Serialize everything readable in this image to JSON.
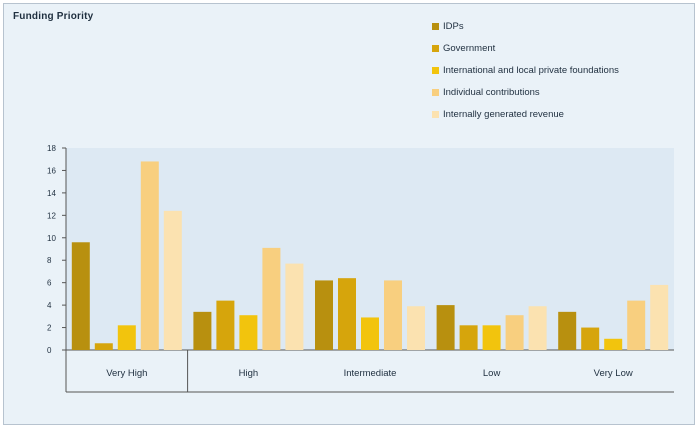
{
  "chart_data": {
    "type": "bar",
    "title": "Funding Priority",
    "categories": [
      "Very High",
      "High",
      "Intermediate",
      "Low",
      "Very Low"
    ],
    "yticks": [
      "0",
      "2",
      "4",
      "6",
      "8",
      "10",
      "12",
      "14",
      "16",
      "18"
    ],
    "ylim": [
      0,
      18
    ],
    "grid": false,
    "legend_position": "top-right",
    "series": [
      {
        "name": "IDPs",
        "color": "#b8900f",
        "values": [
          9.6,
          3.4,
          6.2,
          4.0,
          3.4
        ]
      },
      {
        "name": "Government",
        "color": "#d6a50c",
        "values": [
          0.6,
          4.4,
          6.4,
          2.2,
          2.0
        ]
      },
      {
        "name": "International and local private foundations",
        "color": "#f2c40d",
        "values": [
          2.2,
          3.1,
          2.9,
          2.2,
          1.0
        ]
      },
      {
        "name": "Individual contributions",
        "color": "#f8cf7f",
        "values": [
          16.8,
          9.1,
          6.2,
          3.1,
          4.4
        ]
      },
      {
        "name": "Internally generated revenue",
        "color": "#fbe2b0",
        "values": [
          12.4,
          7.7,
          3.9,
          3.9,
          5.8
        ]
      }
    ]
  }
}
